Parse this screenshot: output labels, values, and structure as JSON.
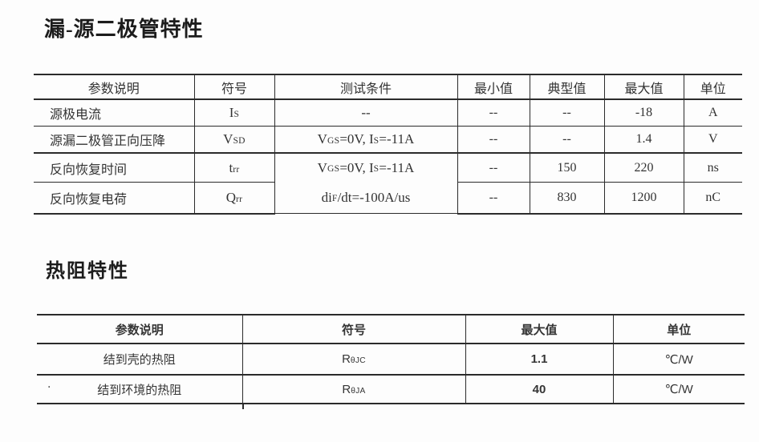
{
  "page": {
    "background": "#fdfdfd",
    "ink": "#2b2b2b"
  },
  "section1": {
    "title": "漏-源二极管特性",
    "table": {
      "headers": [
        "参数说明",
        "符号",
        "测试条件",
        "最小值",
        "典型值",
        "最大值",
        "单位"
      ],
      "rows": [
        {
          "param": "源极电流",
          "symbol": [
            {
              "t": "I"
            },
            {
              "t": "S",
              "sub": true
            }
          ],
          "condition": [
            {
              "t": "--"
            }
          ],
          "min": "--",
          "typ": "--",
          "max": "-18",
          "unit": "A"
        },
        {
          "param": "源漏二极管正向压降",
          "symbol": [
            {
              "t": "V"
            },
            {
              "t": "SD",
              "sub": true
            }
          ],
          "condition": [
            {
              "t": "V"
            },
            {
              "t": "GS",
              "sub": true
            },
            {
              "t": "=0V, I"
            },
            {
              "t": "S",
              "sub": true
            },
            {
              "t": "=-11A"
            }
          ],
          "min": "--",
          "typ": "--",
          "max": "1.4",
          "unit": "V"
        },
        {
          "param": "反向恢复时间",
          "symbol": [
            {
              "t": "t"
            },
            {
              "t": "rr",
              "sub": true
            }
          ],
          "condition": [
            {
              "t": "V"
            },
            {
              "t": "GS",
              "sub": true
            },
            {
              "t": "=0V, I"
            },
            {
              "t": "S",
              "sub": true
            },
            {
              "t": "=-11A"
            }
          ],
          "min": "--",
          "typ": "150",
          "max": "220",
          "unit": "ns"
        },
        {
          "param": "反向恢复电荷",
          "symbol": [
            {
              "t": "Q"
            },
            {
              "t": "rr",
              "sub": true
            }
          ],
          "condition": [
            {
              "t": "di"
            },
            {
              "t": "F",
              "sub": true
            },
            {
              "t": "/dt=-100A/us"
            }
          ],
          "min": "--",
          "typ": "830",
          "max": "1200",
          "unit": "nC"
        }
      ]
    }
  },
  "section2": {
    "title": "热阻特性",
    "table": {
      "headers": [
        "参数说明",
        "符号",
        "最大值",
        "单位"
      ],
      "rows": [
        {
          "param": "结到壳的热阻",
          "symbol": [
            {
              "t": "R"
            },
            {
              "t": "θJC",
              "sub": true
            }
          ],
          "max": "1.1",
          "unit": "℃/W"
        },
        {
          "param": "结到环境的热阻",
          "symbol": [
            {
              "t": "R"
            },
            {
              "t": "θJA",
              "sub": true
            }
          ],
          "max": "40",
          "unit": "℃/W"
        }
      ]
    }
  },
  "artifacts": {
    "dot": "·"
  }
}
